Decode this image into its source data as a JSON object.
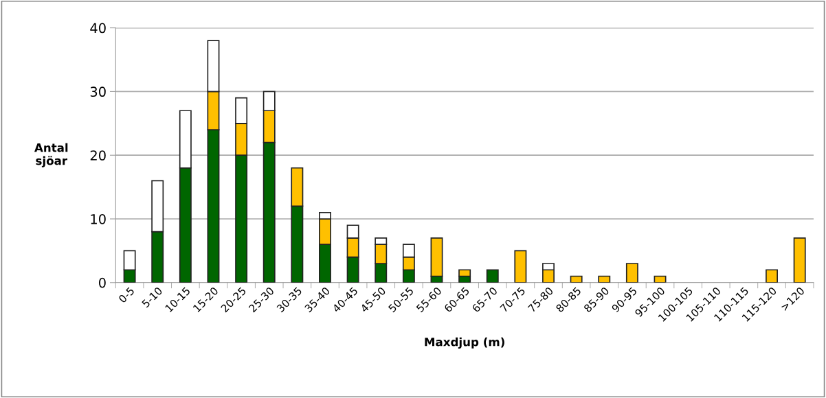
{
  "chart_data": {
    "type": "bar",
    "stacked": true,
    "xlabel": "Maxdjup (m)",
    "ylabel": "Antal\nsjöar",
    "categories": [
      "0-5",
      "5-10",
      "10-15",
      "15-20",
      "20-25",
      "25-30",
      "30-35",
      "35-40",
      "40-45",
      "45-50",
      "50-55",
      "55-60",
      "60-65",
      "65-70",
      "70-75",
      "75-80",
      "80-85",
      "85-90",
      "90-95",
      "95-100",
      "100-105",
      "105-110",
      "110-115",
      "115-120",
      ">120"
    ],
    "series": [
      {
        "color": "#006600",
        "values": [
          2,
          8,
          18,
          24,
          20,
          22,
          12,
          6,
          4,
          3,
          2,
          1,
          1,
          2,
          null,
          null,
          null,
          null,
          null,
          null,
          null,
          null,
          null,
          null,
          null
        ]
      },
      {
        "color": "#ffc000",
        "values": [
          null,
          null,
          null,
          6,
          5,
          5,
          6,
          4,
          3,
          3,
          2,
          6,
          1,
          null,
          5,
          2,
          1,
          1,
          3,
          1,
          null,
          null,
          null,
          2,
          7
        ]
      },
      {
        "color": "#ffffff",
        "values": [
          3,
          8,
          9,
          8,
          4,
          3,
          null,
          1,
          2,
          1,
          2,
          null,
          null,
          null,
          null,
          1,
          null,
          null,
          null,
          null,
          null,
          null,
          null,
          null,
          null
        ]
      }
    ],
    "ylim": [
      0,
      40
    ],
    "yticks": [
      0,
      10,
      20,
      30,
      40
    ],
    "grid": "y"
  }
}
